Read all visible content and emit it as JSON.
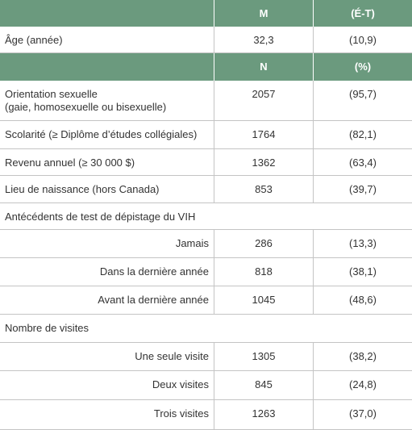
{
  "table": {
    "mean_header": [
      "M",
      "(É-T)"
    ],
    "mean_rows": [
      [
        "Âge (année)",
        "32,3",
        "(10,9)"
      ]
    ],
    "count_header": [
      "N",
      "(%)"
    ],
    "count_rows": [
      [
        "Orientation sexuelle\n(gaie, homosexuelle ou bisexuelle)",
        "2057",
        "(95,7)"
      ],
      [
        "Scolarité (≥ Diplôme d’études collégiales)",
        "1764",
        "(82,1)"
      ],
      [
        "Revenu annuel (≥ 30 000 $)",
        "1362",
        "(63,4)"
      ],
      [
        "Lieu de naissance (hors Canada)",
        "853",
        "(39,7)"
      ]
    ],
    "sections": [
      {
        "label": "Antécédents de test de dépistage du VIH",
        "rows": [
          [
            "Jamais",
            "286",
            "(13,3)"
          ],
          [
            "Dans la dernière année",
            "818",
            "(38,1)"
          ],
          [
            "Avant la dernière année",
            "1045",
            "(48,6)"
          ]
        ]
      },
      {
        "label": "Nombre de visites",
        "rows": [
          [
            "Une seule visite",
            "1305",
            "(38,2)"
          ],
          [
            "Deux visites",
            "845",
            "(24,8)"
          ],
          [
            "Trois visites",
            "1263",
            "(37,0)"
          ]
        ]
      }
    ]
  }
}
